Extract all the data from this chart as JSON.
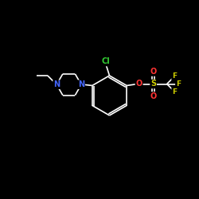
{
  "background_color": "#000000",
  "bond_color": "#ffffff",
  "atom_colors": {
    "N": "#4466ff",
    "Cl": "#33cc33",
    "O": "#ff3333",
    "S": "#cccc00",
    "F": "#cccc00",
    "C": "#ffffff"
  },
  "figsize": [
    2.5,
    2.5
  ],
  "dpi": 100,
  "lw": 1.2
}
